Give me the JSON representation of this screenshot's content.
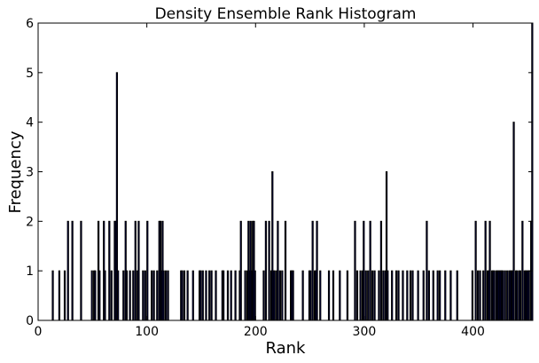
{
  "chart_data": {
    "type": "bar",
    "title": "Density Ensemble Rank Histogram",
    "xlabel": "Rank",
    "ylabel": "Frequency",
    "xlim": [
      0,
      455
    ],
    "ylim": [
      0,
      6
    ],
    "xticks": [
      0,
      100,
      200,
      300,
      400
    ],
    "yticks": [
      0,
      1,
      2,
      3,
      4,
      5,
      6
    ],
    "grid": false,
    "bar_edge_color": "#000000",
    "bar_fill_color": "#00007f",
    "x": [
      14,
      20,
      25,
      28,
      32,
      40,
      50,
      52,
      53,
      56,
      57,
      61,
      62,
      66,
      68,
      71,
      72,
      73,
      74,
      79,
      81,
      82,
      85,
      88,
      90,
      92,
      93,
      97,
      99,
      101,
      105,
      107,
      110,
      112,
      113,
      114,
      115,
      116,
      118,
      120,
      132,
      133,
      135,
      138,
      143,
      149,
      150,
      152,
      155,
      158,
      160,
      164,
      170,
      171,
      175,
      178,
      182,
      186,
      187,
      191,
      193,
      194,
      195,
      196,
      197,
      198,
      199,
      200,
      208,
      210,
      213,
      215,
      216,
      217,
      218,
      220,
      221,
      223,
      225,
      228,
      233,
      234,
      235,
      244,
      250,
      251,
      253,
      255,
      256,
      257,
      260,
      268,
      272,
      278,
      285,
      292,
      294,
      297,
      299,
      300,
      302,
      304,
      306,
      308,
      310,
      314,
      316,
      318,
      320,
      321,
      322,
      326,
      330,
      332,
      336,
      340,
      343,
      345,
      350,
      355,
      358,
      360,
      364,
      368,
      370,
      375,
      380,
      386,
      400,
      403,
      405,
      407,
      410,
      412,
      414,
      415,
      416,
      418,
      419,
      420,
      422,
      423,
      424,
      425,
      426,
      427,
      428,
      430,
      432,
      434,
      435,
      436,
      437,
      438,
      440,
      441,
      443,
      444,
      446,
      448,
      449,
      450,
      451,
      452,
      454,
      455
    ],
    "values": [
      1,
      1,
      1,
      2,
      2,
      2,
      1,
      1,
      1,
      2,
      1,
      2,
      1,
      2,
      1,
      2,
      2,
      5,
      1,
      1,
      2,
      1,
      1,
      1,
      2,
      1,
      2,
      1,
      1,
      2,
      1,
      1,
      1,
      2,
      2,
      1,
      2,
      1,
      1,
      1,
      1,
      1,
      1,
      1,
      1,
      1,
      1,
      1,
      1,
      1,
      1,
      1,
      1,
      1,
      1,
      1,
      1,
      1,
      2,
      1,
      1,
      2,
      1,
      2,
      1,
      2,
      2,
      1,
      1,
      2,
      2,
      1,
      3,
      1,
      1,
      1,
      2,
      1,
      1,
      2,
      1,
      1,
      1,
      1,
      1,
      1,
      2,
      1,
      1,
      2,
      1,
      1,
      1,
      1,
      1,
      2,
      1,
      1,
      1,
      2,
      1,
      1,
      2,
      1,
      1,
      1,
      2,
      1,
      1,
      3,
      1,
      1,
      1,
      1,
      1,
      1,
      1,
      1,
      1,
      1,
      2,
      1,
      1,
      1,
      1,
      1,
      1,
      1,
      1,
      2,
      1,
      1,
      1,
      2,
      1,
      1,
      2,
      1,
      1,
      1,
      1,
      1,
      1,
      1,
      1,
      1,
      1,
      1,
      1,
      1,
      1,
      1,
      1,
      4,
      1,
      1,
      1,
      1,
      2,
      1,
      1,
      1,
      1,
      1,
      2,
      6
    ]
  }
}
